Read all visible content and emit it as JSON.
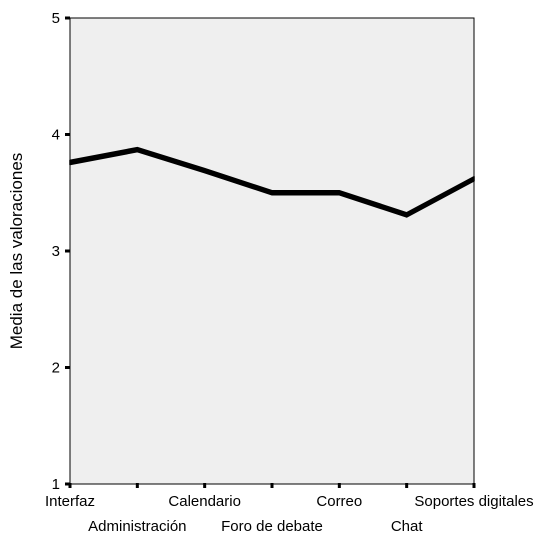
{
  "chart_data": {
    "type": "line",
    "title": "",
    "xlabel": "",
    "ylabel": "Media de las valoraciones",
    "ylim": [
      1,
      5
    ],
    "yticks": [
      1,
      2,
      3,
      4,
      5
    ],
    "categories": [
      "Interfaz",
      "Administración",
      "Calendario",
      "Foro de debate",
      "Correo",
      "Chat",
      "Soportes digitales"
    ],
    "series": [
      {
        "values": [
          3.76,
          3.87,
          3.69,
          3.5,
          3.5,
          3.31,
          3.62
        ]
      }
    ],
    "grid": false,
    "legend": "none",
    "colors": {
      "plot_background": "#efefef",
      "line": "#000000"
    }
  }
}
